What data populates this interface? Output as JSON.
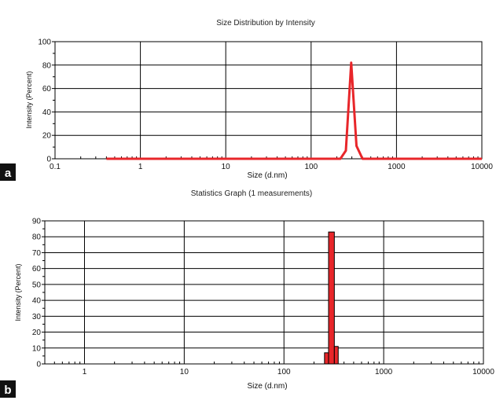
{
  "chart_data": [
    {
      "type": "line",
      "panel_label": "a",
      "title": "Size Distribution by Intensity",
      "xlabel": "Size (d.nm)",
      "ylabel": "Intensity (Percent)",
      "xscale": "log",
      "xlim": [
        0.1,
        10000
      ],
      "ylim": [
        0,
        100
      ],
      "x_ticks": [
        0.1,
        1,
        10,
        100,
        1000,
        10000
      ],
      "x_tick_labels": [
        "0.1",
        "1",
        "10",
        "100",
        "1000",
        "10000"
      ],
      "y_ticks": [
        0,
        20,
        40,
        60,
        80,
        100
      ],
      "y_tick_labels": [
        "0",
        "20",
        "40",
        "60",
        "80",
        "100"
      ],
      "grid": true,
      "color": "#e8262a",
      "series": [
        {
          "x": [
            0.4,
            220,
            255,
            295,
            340,
            400,
            10000
          ],
          "y": [
            0,
            0,
            7,
            82,
            11,
            0,
            0
          ]
        }
      ]
    },
    {
      "type": "bar",
      "panel_label": "b",
      "title": "Statistics Graph (1 measurements)",
      "xlabel": "Size (d.nm)",
      "ylabel": "Intensity (Percent)",
      "xscale": "log",
      "xlim": [
        0.4,
        10000
      ],
      "ylim": [
        0,
        90
      ],
      "x_ticks": [
        1,
        10,
        100,
        1000,
        10000
      ],
      "x_tick_labels": [
        "1",
        "10",
        "100",
        "1000",
        "10000"
      ],
      "y_ticks": [
        0,
        10,
        20,
        30,
        40,
        50,
        60,
        70,
        80,
        90
      ],
      "y_tick_labels": [
        "0",
        "10",
        "20",
        "30",
        "40",
        "50",
        "60",
        "70",
        "80",
        "90"
      ],
      "grid": true,
      "color": "#e8262a",
      "bars": [
        {
          "x0": 255,
          "x1": 280,
          "value": 7
        },
        {
          "x0": 280,
          "x1": 320,
          "value": 83
        },
        {
          "x0": 320,
          "x1": 350,
          "value": 11
        }
      ]
    }
  ]
}
